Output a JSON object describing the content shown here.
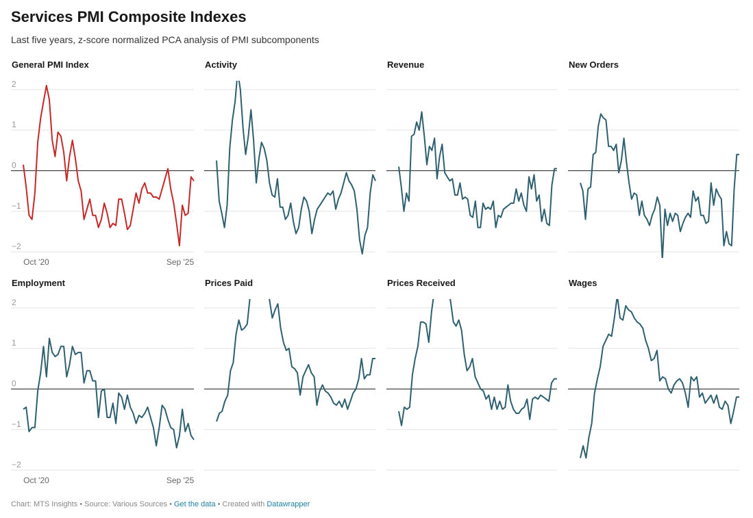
{
  "header": {
    "title": "Services PMI Composite Indexes",
    "subtitle": "Last five years, z-score normalized PCA analysis of PMI subcomponents"
  },
  "footer": {
    "chart_credit": "Chart: MTS Insights",
    "separator": " • ",
    "source": "Source: Various Sources",
    "get_data": "Get the data",
    "created_with": "Created with ",
    "datawrapper": "Datawrapper"
  },
  "colors": {
    "primary_series": "#c62828",
    "secondary_series": "#2d5f6f",
    "grid": "#e3e3e3",
    "zero_line": "#222222",
    "tick_text": "#999999",
    "link": "#1d81a2"
  },
  "chart_data": [
    {
      "type": "line",
      "title": "General PMI Index",
      "series": [
        {
          "values": [
            0.15,
            -0.4,
            -1.1,
            -1.2,
            -0.55,
            0.7,
            1.3,
            1.7,
            2.1,
            1.75,
            0.75,
            0.35,
            0.95,
            0.85,
            0.45,
            -0.25,
            0.35,
            0.75,
            0.3,
            -0.25,
            -0.5,
            -1.2,
            -0.95,
            -0.7,
            -1.1,
            -1.1,
            -1.4,
            -1.2,
            -0.8,
            -1.05,
            -1.4,
            -1.3,
            -1.35,
            -0.7,
            -0.7,
            -1.05,
            -1.45,
            -1.35,
            -0.95,
            -0.55,
            -0.8,
            -0.45,
            -0.3,
            -0.55,
            -0.55,
            -0.65,
            -0.65,
            -0.7,
            -0.45,
            -0.2,
            0.05,
            -0.45,
            -0.8,
            -1.3,
            -1.85,
            -0.85,
            -1.1,
            -1.05,
            -0.15,
            -0.25
          ]
        }
      ],
      "x_tick_labels": [
        "Oct '20",
        "Sep '25"
      ],
      "y_ticks": [
        -2,
        -1,
        0,
        1,
        2
      ],
      "ylim": [
        -2.05,
        2.15
      ]
    },
    {
      "type": "line",
      "title": "Activity",
      "series": [
        {
          "values": [
            0.25,
            -0.75,
            -1.05,
            -1.4,
            -0.85,
            0.55,
            1.25,
            1.7,
            2.45,
            2.0,
            1.05,
            0.4,
            0.85,
            1.5,
            0.75,
            -0.3,
            0.3,
            0.7,
            0.55,
            0.25,
            -0.3,
            -0.6,
            -0.65,
            -0.2,
            -0.9,
            -0.9,
            -1.2,
            -1.1,
            -0.8,
            -1.25,
            -1.55,
            -1.4,
            -0.95,
            -0.65,
            -0.75,
            -1.0,
            -1.55,
            -1.2,
            -0.95,
            -0.85,
            -0.75,
            -0.65,
            -0.55,
            -0.6,
            -0.5,
            -0.95,
            -0.7,
            -0.55,
            -0.3,
            -0.05,
            -0.25,
            -0.35,
            -0.5,
            -0.95,
            -1.7,
            -2.05,
            -1.6,
            -1.4,
            -0.55,
            -0.1,
            -0.25
          ]
        }
      ],
      "x_tick_labels": [],
      "y_ticks": [
        -2,
        -1,
        0,
        1,
        2
      ],
      "ylim": [
        -2.05,
        2.15
      ]
    },
    {
      "type": "line",
      "title": "Revenue",
      "series": [
        {
          "values": [
            0.1,
            -0.4,
            -1.0,
            -0.55,
            -0.75,
            0.85,
            0.9,
            1.2,
            1.0,
            1.45,
            0.85,
            0.15,
            0.6,
            0.5,
            0.8,
            -0.2,
            0.35,
            0.65,
            -0.05,
            -0.15,
            -0.25,
            -0.2,
            -0.6,
            -0.6,
            -0.3,
            -0.7,
            -0.65,
            -0.7,
            -1.1,
            -1.15,
            -0.75,
            -1.4,
            -1.4,
            -0.8,
            -0.95,
            -0.9,
            -0.95,
            -0.75,
            -1.4,
            -1.1,
            -1.15,
            -0.95,
            -0.9,
            -0.85,
            -0.8,
            -0.8,
            -0.45,
            -0.75,
            -0.55,
            -0.85,
            -1.0,
            -0.15,
            -0.45,
            -0.1,
            -0.75,
            -0.6,
            -1.25,
            -0.95,
            -1.3,
            -1.35,
            -0.35,
            0.05,
            0.05
          ]
        }
      ],
      "x_tick_labels": [],
      "y_ticks": [
        -2,
        -1,
        0,
        1,
        2
      ],
      "ylim": [
        -2.05,
        2.15
      ]
    },
    {
      "type": "line",
      "title": "New Orders",
      "series": [
        {
          "values": [
            -0.3,
            -0.5,
            -1.2,
            -0.45,
            -0.4,
            0.4,
            0.45,
            1.1,
            1.4,
            1.3,
            1.25,
            0.6,
            0.6,
            0.5,
            0.65,
            -0.05,
            0.25,
            0.8,
            0.2,
            -0.3,
            -0.7,
            -0.55,
            -0.6,
            -1.1,
            -0.75,
            -1.1,
            -1.2,
            -1.35,
            -1.1,
            -0.95,
            -0.65,
            -0.85,
            -2.2,
            -0.95,
            -1.35,
            -1.05,
            -1.25,
            -1.05,
            -1.1,
            -1.5,
            -1.3,
            -1.15,
            -1.05,
            -1.15,
            -0.5,
            -0.75,
            -0.65,
            -1.1,
            -1.1,
            -1.3,
            -1.25,
            -0.3,
            -0.85,
            -0.45,
            -0.6,
            -0.7,
            -1.85,
            -1.5,
            -1.8,
            -1.85,
            -0.45,
            0.4,
            0.4
          ]
        }
      ],
      "x_tick_labels": [],
      "y_ticks": [
        -2,
        -1,
        0,
        1,
        2
      ],
      "ylim": [
        -2.05,
        2.15
      ]
    },
    {
      "type": "line",
      "title": "Employment",
      "series": [
        {
          "values": [
            -0.5,
            -0.45,
            -1.05,
            -0.95,
            -0.95,
            -0.05,
            0.4,
            1.05,
            0.3,
            1.25,
            0.9,
            0.8,
            0.85,
            1.05,
            1.05,
            0.3,
            0.6,
            1.05,
            0.85,
            0.9,
            0.9,
            0.15,
            0.45,
            0.45,
            0.2,
            0.2,
            -0.7,
            -0.05,
            0.0,
            -0.7,
            -0.7,
            -0.35,
            -0.85,
            -0.1,
            -0.2,
            -0.5,
            -0.15,
            -0.45,
            -0.6,
            -0.85,
            -0.65,
            -0.7,
            -0.6,
            -0.45,
            -0.7,
            -0.95,
            -1.4,
            -0.95,
            -0.4,
            -0.5,
            -0.75,
            -0.95,
            -1.0,
            -1.45,
            -1.15,
            -0.5,
            -1.05,
            -0.85,
            -1.15,
            -1.25
          ]
        }
      ],
      "x_tick_labels": [
        "Oct '20",
        "Sep '25"
      ],
      "y_ticks": [
        -2,
        -1,
        0,
        1,
        2
      ],
      "ylim": [
        -2.05,
        2.15
      ]
    },
    {
      "type": "line",
      "title": "Prices Paid",
      "series": [
        {
          "values": [
            -0.8,
            -0.6,
            -0.55,
            -0.3,
            -0.15,
            0.45,
            0.65,
            1.35,
            1.7,
            1.45,
            1.5,
            1.6,
            2.25,
            2.4,
            2.5,
            2.25,
            2.55,
            2.8,
            2.75,
            2.2,
            1.75,
            1.95,
            2.1,
            1.5,
            1.15,
            0.95,
            1.0,
            0.55,
            0.5,
            0.4,
            -0.15,
            0.3,
            0.45,
            0.6,
            0.4,
            0.3,
            -0.4,
            -0.05,
            0.1,
            -0.05,
            -0.1,
            -0.2,
            -0.35,
            -0.4,
            -0.3,
            -0.45,
            -0.25,
            -0.5,
            -0.3,
            -0.1,
            0.0,
            0.25,
            0.75,
            0.25,
            0.35,
            0.35,
            0.75,
            0.75
          ]
        }
      ],
      "x_tick_labels": [],
      "y_ticks": [
        -2,
        -1,
        0,
        1,
        2
      ],
      "ylim": [
        -2.05,
        2.15
      ]
    },
    {
      "type": "line",
      "title": "Prices Received",
      "series": [
        {
          "values": [
            -0.55,
            -0.9,
            -0.45,
            -0.5,
            -0.45,
            0.35,
            0.75,
            1.05,
            1.65,
            1.65,
            1.6,
            1.15,
            1.9,
            2.4,
            2.7,
            2.35,
            2.55,
            2.7,
            2.5,
            2.15,
            1.65,
            1.55,
            1.7,
            1.45,
            0.85,
            0.45,
            0.55,
            0.75,
            0.3,
            0.15,
            0.0,
            -0.05,
            -0.25,
            -0.15,
            -0.5,
            -0.2,
            -0.5,
            -0.3,
            -0.5,
            -0.45,
            0.1,
            -0.3,
            -0.5,
            -0.6,
            -0.6,
            -0.5,
            -0.45,
            -0.25,
            -0.75,
            -0.25,
            -0.2,
            -0.25,
            -0.15,
            -0.2,
            -0.25,
            -0.3,
            0.15,
            0.25,
            0.25
          ]
        }
      ],
      "x_tick_labels": [],
      "y_ticks": [
        -2,
        -1,
        0,
        1,
        2
      ],
      "ylim": [
        -2.05,
        2.15
      ]
    },
    {
      "type": "line",
      "title": "Wages",
      "series": [
        {
          "values": [
            -1.7,
            -1.4,
            -1.7,
            -1.2,
            -0.85,
            -0.1,
            0.25,
            0.55,
            1.05,
            1.2,
            1.35,
            1.3,
            1.75,
            2.3,
            1.75,
            1.7,
            2.05,
            1.95,
            1.9,
            1.75,
            1.65,
            1.6,
            1.5,
            1.2,
            1.0,
            0.7,
            0.75,
            0.95,
            0.2,
            0.3,
            0.25,
            0.0,
            -0.1,
            0.1,
            0.2,
            0.25,
            0.15,
            -0.1,
            -0.45,
            0.3,
            0.2,
            0.3,
            -0.2,
            -0.1,
            -0.35,
            -0.25,
            -0.15,
            -0.35,
            -0.15,
            -0.45,
            -0.5,
            -0.3,
            -0.4,
            -0.85,
            -0.55,
            -0.2,
            -0.2
          ]
        }
      ],
      "x_tick_labels": [],
      "y_ticks": [
        -2,
        -1,
        0,
        1,
        2
      ],
      "ylim": [
        -2.05,
        2.15
      ]
    }
  ]
}
